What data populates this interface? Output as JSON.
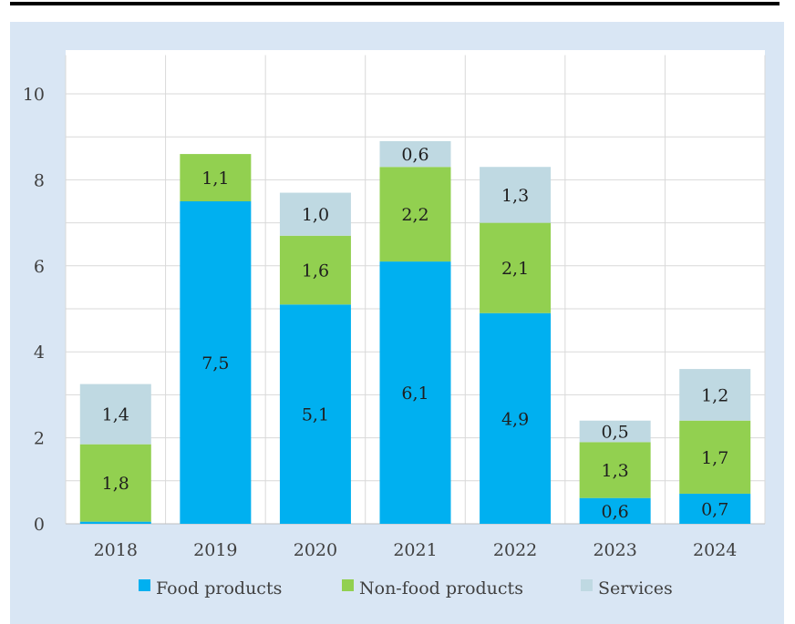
{
  "chart_data": {
    "type": "bar",
    "stacked": true,
    "categories": [
      "2018",
      "2019",
      "2020",
      "2021",
      "2022",
      "2023",
      "2024"
    ],
    "series": [
      {
        "name": "Food products",
        "color": "#00b0f0",
        "values": [
          0.05,
          7.5,
          5.1,
          6.1,
          4.9,
          0.6,
          0.7
        ],
        "labels": [
          "",
          "7,5",
          "5,1",
          "6,1",
          "4,9",
          "0,6",
          "0,7"
        ]
      },
      {
        "name": "Non-food products",
        "color": "#92d050",
        "values": [
          1.8,
          1.1,
          1.6,
          2.2,
          2.1,
          1.3,
          1.7
        ],
        "labels": [
          "1,8",
          "1,1",
          "1,6",
          "2,2",
          "2,1",
          "1,3",
          "1,7"
        ]
      },
      {
        "name": "Services",
        "color": "#bfd9e2",
        "values": [
          1.4,
          0.0,
          1.0,
          0.6,
          1.3,
          0.5,
          1.2
        ],
        "labels": [
          "1,4",
          "",
          "1,0",
          "0,6",
          "1,3",
          "0,5",
          "1,2"
        ]
      }
    ],
    "yticks": [
      "0",
      "2",
      "4",
      "6",
      "8",
      "10"
    ],
    "ylim": [
      0,
      11
    ],
    "grid": true,
    "legend_position": "bottom"
  }
}
